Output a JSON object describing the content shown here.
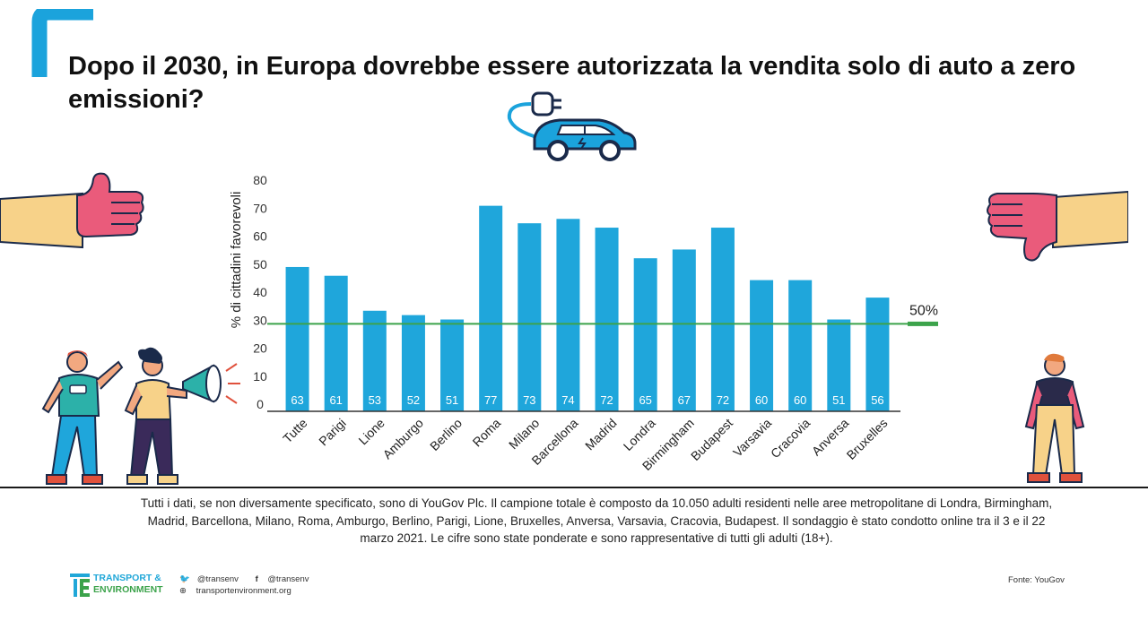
{
  "title": "Dopo il 2030, in Europa dovrebbe essere autorizzata la vendita solo di auto a zero emissioni?",
  "colors": {
    "bar": "#1fa6db",
    "accent": "#1ba3dc",
    "threshold": "#3ca34b",
    "axis": "#333333"
  },
  "chart_data": {
    "type": "bar",
    "ylabel": "% di cittadini favorevoli",
    "xlabel": "",
    "ylim": [
      0,
      80
    ],
    "yticks": [
      0,
      10,
      20,
      30,
      40,
      50,
      60,
      70,
      80
    ],
    "categories": [
      "Tutte",
      "Parigi",
      "Lione",
      "Amburgo",
      "Berlino",
      "Roma",
      "Milano",
      "Barcellona",
      "Madrid",
      "Londra",
      "Birmingham",
      "Budapest",
      "Varsavia",
      "Cracovia",
      "Anversa",
      "Bruxelles"
    ],
    "values": [
      63,
      61,
      53,
      52,
      51,
      77,
      73,
      74,
      72,
      65,
      67,
      72,
      60,
      60,
      51,
      56
    ],
    "threshold": {
      "value": 50,
      "label": "50%"
    }
  },
  "footnote": "Tutti i dati, se non diversamente specificato, sono di YouGov Plc. Il campione totale è composto da 10.050 adulti residenti nelle aree metropolitane di Londra, Birmingham, Madrid, Barcellona, Milano, Roma, Amburgo, Berlino, Parigi, Lione, Bruxelles, Anversa, Varsavia, Cracovia, Budapest. Il sondaggio è stato condotto online tra il 3 e il 22 marzo 2021. Le cifre sono state ponderate e sono rappresentative di tutti gli adulti (18+).",
  "footer": {
    "logo_line1": "TRANSPORT &",
    "logo_line2": "ENVIRONMENT",
    "twitter": "@transenv",
    "facebook": "@transenv",
    "website": "transportenvironment.org",
    "source": "Fonte: YouGov"
  }
}
